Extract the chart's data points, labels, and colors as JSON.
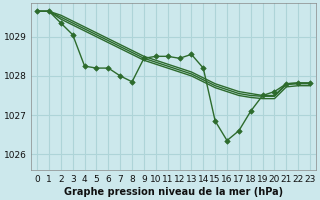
{
  "title": "Graphe pression niveau de la mer (hPa)",
  "background_color": "#cce8ec",
  "grid_color": "#aed4d8",
  "line_color": "#2d6b2d",
  "marker_color": "#2d6b2d",
  "ylim": [
    1025.6,
    1029.85
  ],
  "xlim": [
    -0.5,
    23.5
  ],
  "yticks": [
    1026,
    1027,
    1028,
    1029
  ],
  "xticks": [
    0,
    1,
    2,
    3,
    4,
    5,
    6,
    7,
    8,
    9,
    10,
    11,
    12,
    13,
    14,
    15,
    16,
    17,
    18,
    19,
    20,
    21,
    22,
    23
  ],
  "series": [
    {
      "y": [
        1029.65,
        1029.65,
        1029.35,
        1029.05,
        1028.25,
        1028.2,
        1028.2,
        1028.0,
        1027.85,
        1028.45,
        1028.5,
        1028.5,
        1028.45,
        1028.55,
        1028.2,
        1026.85,
        1026.35,
        1026.6,
        1027.1,
        1027.5,
        1027.6,
        1027.8,
        1027.82,
        1027.82
      ],
      "lw": 1.0,
      "marker": true,
      "ms": 2.8
    },
    {
      "y": [
        1029.65,
        1029.65,
        1029.55,
        1029.4,
        1029.25,
        1029.1,
        1028.95,
        1028.8,
        1028.65,
        1028.5,
        1028.4,
        1028.3,
        1028.2,
        1028.1,
        1027.95,
        1027.8,
        1027.7,
        1027.6,
        1027.55,
        1027.5,
        1027.5,
        1027.8,
        1027.82,
        1027.82
      ],
      "lw": 1.0,
      "marker": false,
      "ms": 0
    },
    {
      "y": [
        1029.65,
        1029.65,
        1029.5,
        1029.35,
        1029.2,
        1029.05,
        1028.9,
        1028.75,
        1028.6,
        1028.45,
        1028.35,
        1028.25,
        1028.15,
        1028.05,
        1027.9,
        1027.75,
        1027.65,
        1027.55,
        1027.5,
        1027.48,
        1027.48,
        1027.78,
        1027.8,
        1027.8
      ],
      "lw": 1.0,
      "marker": false,
      "ms": 0
    },
    {
      "y": [
        1029.65,
        1029.65,
        1029.45,
        1029.3,
        1029.15,
        1029.0,
        1028.85,
        1028.7,
        1028.55,
        1028.4,
        1028.3,
        1028.2,
        1028.1,
        1028.0,
        1027.85,
        1027.7,
        1027.6,
        1027.5,
        1027.45,
        1027.42,
        1027.42,
        1027.72,
        1027.75,
        1027.75
      ],
      "lw": 1.0,
      "marker": false,
      "ms": 0
    }
  ],
  "xlabel_fontsize": 6.5,
  "ylabel_fontsize": 6.5,
  "title_fontsize": 7.0,
  "tick_fontsize": 6.0
}
